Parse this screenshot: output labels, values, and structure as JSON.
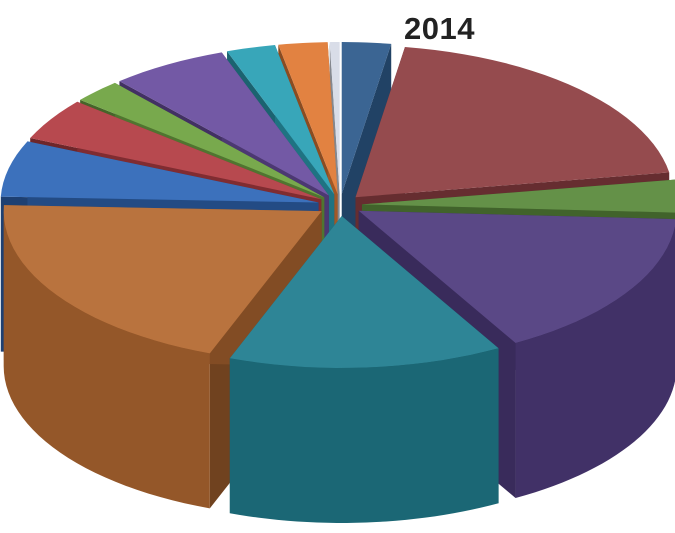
{
  "chart_data": {
    "type": "pie",
    "style": "3d-exploded",
    "title": "2014",
    "legend": "none",
    "data_labels": "none",
    "slices": [
      {
        "value": 2.5,
        "color": "#2e5b8c"
      },
      {
        "value": 20.0,
        "color": "#8e3f43"
      },
      {
        "value": 3.5,
        "color": "#5a8a3c"
      },
      {
        "value": 16.0,
        "color": "#4f3c7e"
      },
      {
        "value": 14.0,
        "color": "#217d8f"
      },
      {
        "value": 20.0,
        "color": "#b46a32"
      },
      {
        "value": 6.0,
        "color": "#3068b8"
      },
      {
        "value": 4.5,
        "color": "#b23d44"
      },
      {
        "value": 2.5,
        "color": "#6fa342"
      },
      {
        "value": 6.0,
        "color": "#6a4e9f"
      },
      {
        "value": 2.5,
        "color": "#2ba0b4"
      },
      {
        "value": 2.5,
        "color": "#e07a35"
      },
      {
        "value": 0.5,
        "color": "#d7dbe6"
      }
    ]
  }
}
